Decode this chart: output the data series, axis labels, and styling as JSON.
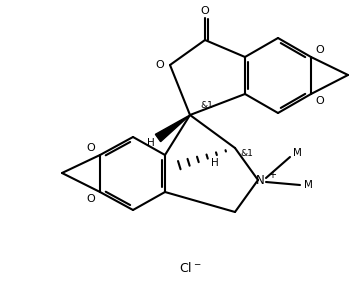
{
  "background_color": "#ffffff",
  "line_color": "#000000",
  "line_width": 1.5,
  "text_color": "#000000",
  "cl_label": "Cl⁻",
  "atom_O": "O",
  "atom_N": "N",
  "atom_N_charge": "+",
  "stereo1": "&1",
  "stereo2": "&1",
  "H_upper": "H",
  "H_lower": "H",
  "Me1": "M",
  "Me2": "M",
  "carbonyl_O": "O",
  "lact_O": "O",
  "upper_O1": "O",
  "upper_O2": "O",
  "lower_O1": "O",
  "lower_O2": "O",
  "N_label": "N",
  "plus": "+"
}
